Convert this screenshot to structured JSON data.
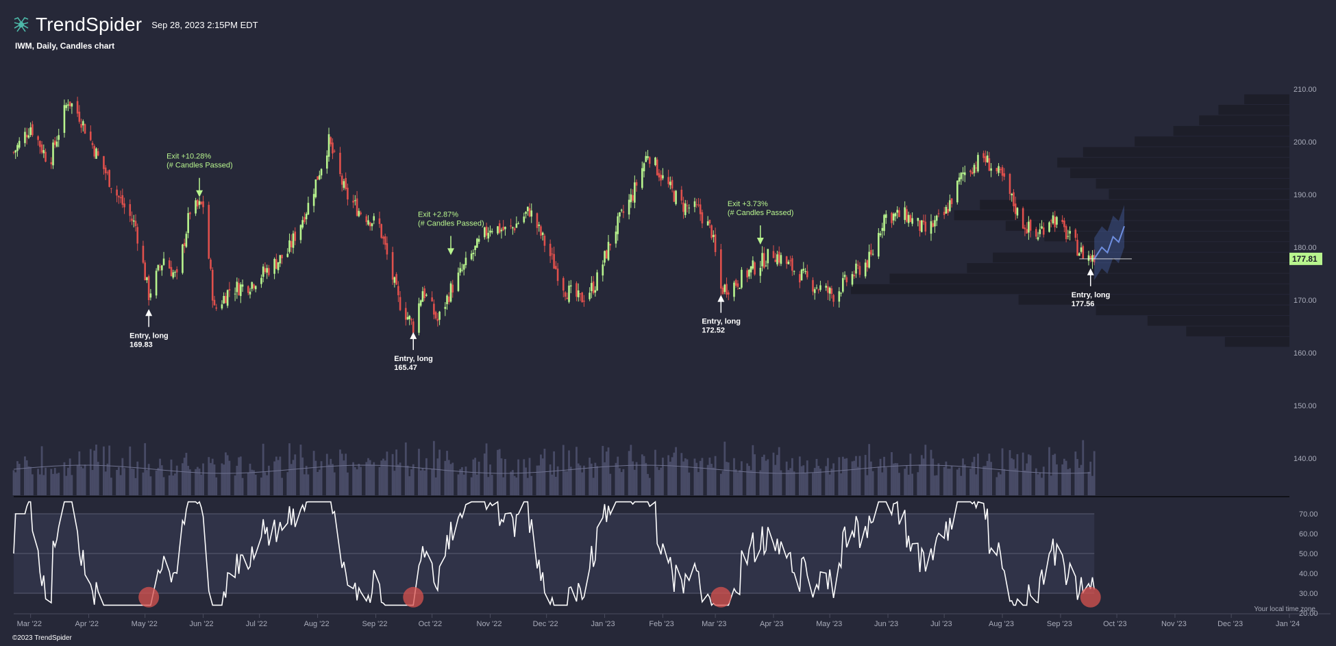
{
  "header": {
    "brand": "TrendSpider",
    "datetime": "Sep 28, 2023 2:15PM EDT",
    "subtitle": "IWM, Daily, Candles chart",
    "timezone_note": "Your local time zone",
    "copyright": "©2023 TrendSpider",
    "logo_icon": "trendspider-spider-icon"
  },
  "colors": {
    "background": "#262838",
    "up": "#b8f58e",
    "down": "#e0504c",
    "volume": "#4d4f6b",
    "rsi_line": "#ffffff",
    "rsi_band": "#32344a",
    "forecast": "#4f6fbf",
    "profile": "#1c1d28",
    "marker": "#d9534f"
  },
  "chart_data": {
    "type": "candlestick",
    "symbol": "IWM",
    "interval": "Daily",
    "x_range": [
      "2022-03-01",
      "2024-01-10"
    ],
    "y_range": [
      134,
      212
    ],
    "y_ticks": [
      140,
      150,
      160,
      170,
      180,
      190,
      200,
      210
    ],
    "y_tick_labels": [
      "140.00",
      "150.00",
      "160.00",
      "170.00",
      "180.00",
      "190.00",
      "200.00",
      "210.00"
    ],
    "x_tick_labels": [
      "Mar '22",
      "Apr '22",
      "May '22",
      "Jun '22",
      "Jul '22",
      "Aug '22",
      "Sep '22",
      "Oct '22",
      "Nov '22",
      "Dec '22",
      "Jan '23",
      "Feb '23",
      "Mar '23",
      "Apr '23",
      "May '23",
      "Jun '23",
      "Jul '23",
      "Aug '23",
      "Sep '23",
      "Oct '23",
      "Nov '23",
      "Dec '23",
      "Jan '24"
    ],
    "x_tick_dates": [
      "2022-03-10",
      "2022-04-10",
      "2022-05-10",
      "2022-06-10",
      "2022-07-10",
      "2022-08-10",
      "2022-09-10",
      "2022-10-10",
      "2022-11-10",
      "2022-12-10",
      "2023-01-10",
      "2023-02-10",
      "2023-03-10",
      "2023-04-10",
      "2023-05-10",
      "2023-06-10",
      "2023-07-10",
      "2023-08-10",
      "2023-09-10",
      "2023-10-10",
      "2023-11-10",
      "2023-12-10",
      "2024-01-10"
    ],
    "close_anchors": [
      [
        "2022-03-01",
        198
      ],
      [
        "2022-03-10",
        203
      ],
      [
        "2022-03-20",
        196
      ],
      [
        "2022-03-30",
        208
      ],
      [
        "2022-04-05",
        205
      ],
      [
        "2022-04-15",
        197
      ],
      [
        "2022-04-25",
        190
      ],
      [
        "2022-05-05",
        184
      ],
      [
        "2022-05-12",
        171
      ],
      [
        "2022-05-20",
        178
      ],
      [
        "2022-05-27",
        174
      ],
      [
        "2022-06-03",
        187
      ],
      [
        "2022-06-10",
        188
      ],
      [
        "2022-06-16",
        168
      ],
      [
        "2022-06-24",
        172
      ],
      [
        "2022-07-05",
        173
      ],
      [
        "2022-07-15",
        176
      ],
      [
        "2022-07-25",
        179
      ],
      [
        "2022-08-05",
        188
      ],
      [
        "2022-08-16",
        200
      ],
      [
        "2022-08-25",
        190
      ],
      [
        "2022-09-01",
        187
      ],
      [
        "2022-09-12",
        184
      ],
      [
        "2022-09-22",
        170
      ],
      [
        "2022-09-30",
        165
      ],
      [
        "2022-10-05",
        172
      ],
      [
        "2022-10-13",
        166
      ],
      [
        "2022-10-20",
        172
      ],
      [
        "2022-11-01",
        179
      ],
      [
        "2022-11-10",
        184
      ],
      [
        "2022-11-20",
        183
      ],
      [
        "2022-12-01",
        187
      ],
      [
        "2022-12-10",
        180
      ],
      [
        "2022-12-20",
        172
      ],
      [
        "2022-12-28",
        170
      ],
      [
        "2023-01-05",
        173
      ],
      [
        "2023-01-15",
        183
      ],
      [
        "2023-01-25",
        190
      ],
      [
        "2023-02-02",
        198
      ],
      [
        "2023-02-10",
        193
      ],
      [
        "2023-02-20",
        188
      ],
      [
        "2023-03-01",
        187
      ],
      [
        "2023-03-08",
        183
      ],
      [
        "2023-03-13",
        172
      ],
      [
        "2023-03-20",
        173
      ],
      [
        "2023-03-30",
        176
      ],
      [
        "2023-04-10",
        179
      ],
      [
        "2023-04-20",
        176
      ],
      [
        "2023-05-01",
        173
      ],
      [
        "2023-05-12",
        171
      ],
      [
        "2023-05-20",
        174
      ],
      [
        "2023-06-01",
        178
      ],
      [
        "2023-06-08",
        186
      ],
      [
        "2023-06-20",
        186
      ],
      [
        "2023-06-30",
        183
      ],
      [
        "2023-07-10",
        186
      ],
      [
        "2023-07-20",
        194
      ],
      [
        "2023-07-31",
        197
      ],
      [
        "2023-08-10",
        193
      ],
      [
        "2023-08-20",
        185
      ],
      [
        "2023-08-28",
        182
      ],
      [
        "2023-09-05",
        186
      ],
      [
        "2023-09-12",
        183
      ],
      [
        "2023-09-21",
        179
      ],
      [
        "2023-09-28",
        177.81
      ]
    ],
    "last_price": "177.81",
    "trades": [
      {
        "type": "entry",
        "label": "Entry, long",
        "price": "169.83",
        "date": "2022-05-12",
        "y": 169.83
      },
      {
        "type": "exit",
        "label": "Exit +10.28%",
        "sub": "(# Candles Passed)",
        "date": "2022-06-08",
        "y": 189
      },
      {
        "type": "entry",
        "label": "Entry, long",
        "price": "165.47",
        "date": "2022-09-30",
        "y": 165.47
      },
      {
        "type": "exit",
        "label": "Exit +2.87%",
        "sub": "(# Candles Passed)",
        "date": "2022-10-20",
        "y": 178
      },
      {
        "type": "entry",
        "label": "Entry, long",
        "price": "172.52",
        "date": "2023-03-13",
        "y": 172.52
      },
      {
        "type": "exit",
        "label": "Exit +3.73%",
        "sub": "(# Candles Passed)",
        "date": "2023-04-03",
        "y": 180
      },
      {
        "type": "entry",
        "label": "Entry, long",
        "price": "177.56",
        "date": "2023-09-26",
        "y": 177.56
      }
    ],
    "forecast": [
      [
        "2023-09-28",
        177.8
      ],
      [
        "2023-10-02",
        180
      ],
      [
        "2023-10-05",
        179
      ],
      [
        "2023-10-08",
        182
      ],
      [
        "2023-10-11",
        181
      ],
      [
        "2023-10-14",
        184
      ]
    ],
    "volume_profile": [
      {
        "price": 208,
        "size": 0.35
      },
      {
        "price": 206,
        "size": 0.55
      },
      {
        "price": 204,
        "size": 0.7
      },
      {
        "price": 202,
        "size": 0.9
      },
      {
        "price": 200,
        "size": 1.2
      },
      {
        "price": 198,
        "size": 1.6
      },
      {
        "price": 196,
        "size": 1.8
      },
      {
        "price": 194,
        "size": 1.7
      },
      {
        "price": 192,
        "size": 1.5
      },
      {
        "price": 190,
        "size": 1.4
      },
      {
        "price": 188,
        "size": 2.4
      },
      {
        "price": 186,
        "size": 2.6
      },
      {
        "price": 184,
        "size": 2.2
      },
      {
        "price": 182,
        "size": 1.9
      },
      {
        "price": 180,
        "size": 1.6
      },
      {
        "price": 178,
        "size": 2.3
      },
      {
        "price": 176,
        "size": 2.5
      },
      {
        "price": 174,
        "size": 3.1
      },
      {
        "price": 172,
        "size": 3.4
      },
      {
        "price": 170,
        "size": 2.1
      },
      {
        "price": 168,
        "size": 1.5
      },
      {
        "price": 166,
        "size": 1.1
      },
      {
        "price": 164,
        "size": 0.8
      },
      {
        "price": 162,
        "size": 0.5
      }
    ],
    "rsi": {
      "y_range": [
        18,
        78
      ],
      "y_ticks": [
        20,
        30,
        40,
        50,
        60,
        70
      ],
      "y_tick_labels": [
        "20.00",
        "30.00",
        "40.00",
        "50.00",
        "60.00",
        "70.00"
      ],
      "overbought": 70,
      "oversold": 30,
      "oversold_markers": [
        "2022-05-12",
        "2022-09-30",
        "2023-03-13",
        "2023-09-26"
      ]
    }
  }
}
